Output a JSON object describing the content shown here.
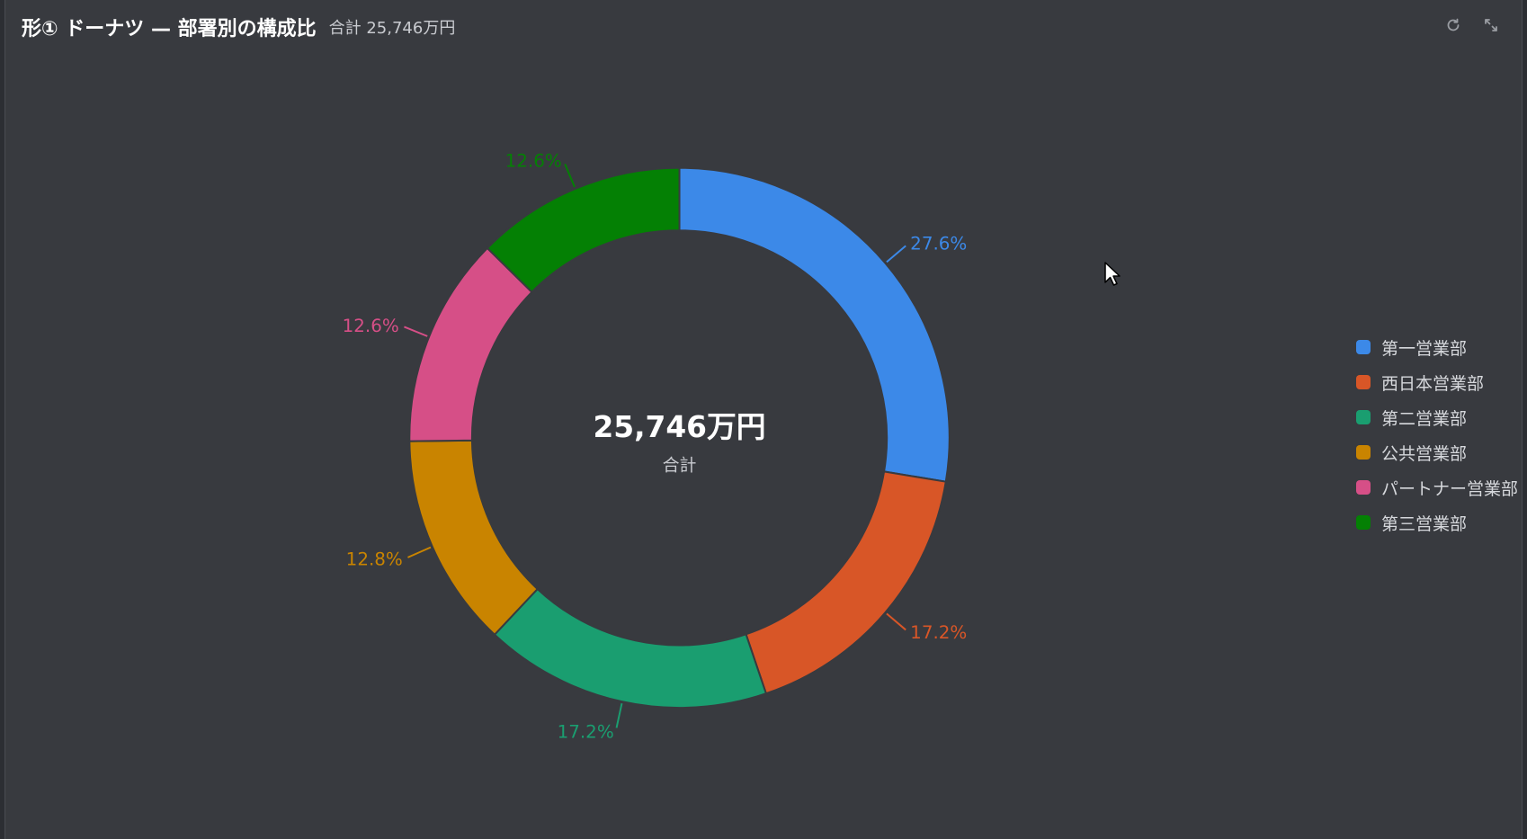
{
  "header": {
    "title": "形① ドーナツ — 部署別の構成比",
    "subtitle": "合計 25,746万円"
  },
  "toolbar": {
    "refresh_icon": "refresh-icon",
    "expand_icon": "expand-icon"
  },
  "center": {
    "value": "25,746万円",
    "label": "合計"
  },
  "chart_data": {
    "type": "pie",
    "variant": "donut",
    "title": "形① ドーナツ — 部署別の構成比",
    "total_label": "合計 25,746万円",
    "legend_position": "right",
    "series": [
      {
        "name": "第一営業部",
        "percent": 27.6,
        "label": "27.6%",
        "color": "#3c89e8"
      },
      {
        "name": "西日本営業部",
        "percent": 17.2,
        "label": "17.2%",
        "color": "#d85627"
      },
      {
        "name": "第二営業部",
        "percent": 17.2,
        "label": "17.2%",
        "color": "#1a9e70"
      },
      {
        "name": "公共営業部",
        "percent": 12.8,
        "label": "12.8%",
        "color": "#c98400"
      },
      {
        "name": "パートナー営業部",
        "percent": 12.6,
        "label": "12.6%",
        "color": "#d64f87"
      },
      {
        "name": "第三営業部",
        "percent": 12.6,
        "label": "12.6%",
        "color": "#048004"
      }
    ]
  }
}
